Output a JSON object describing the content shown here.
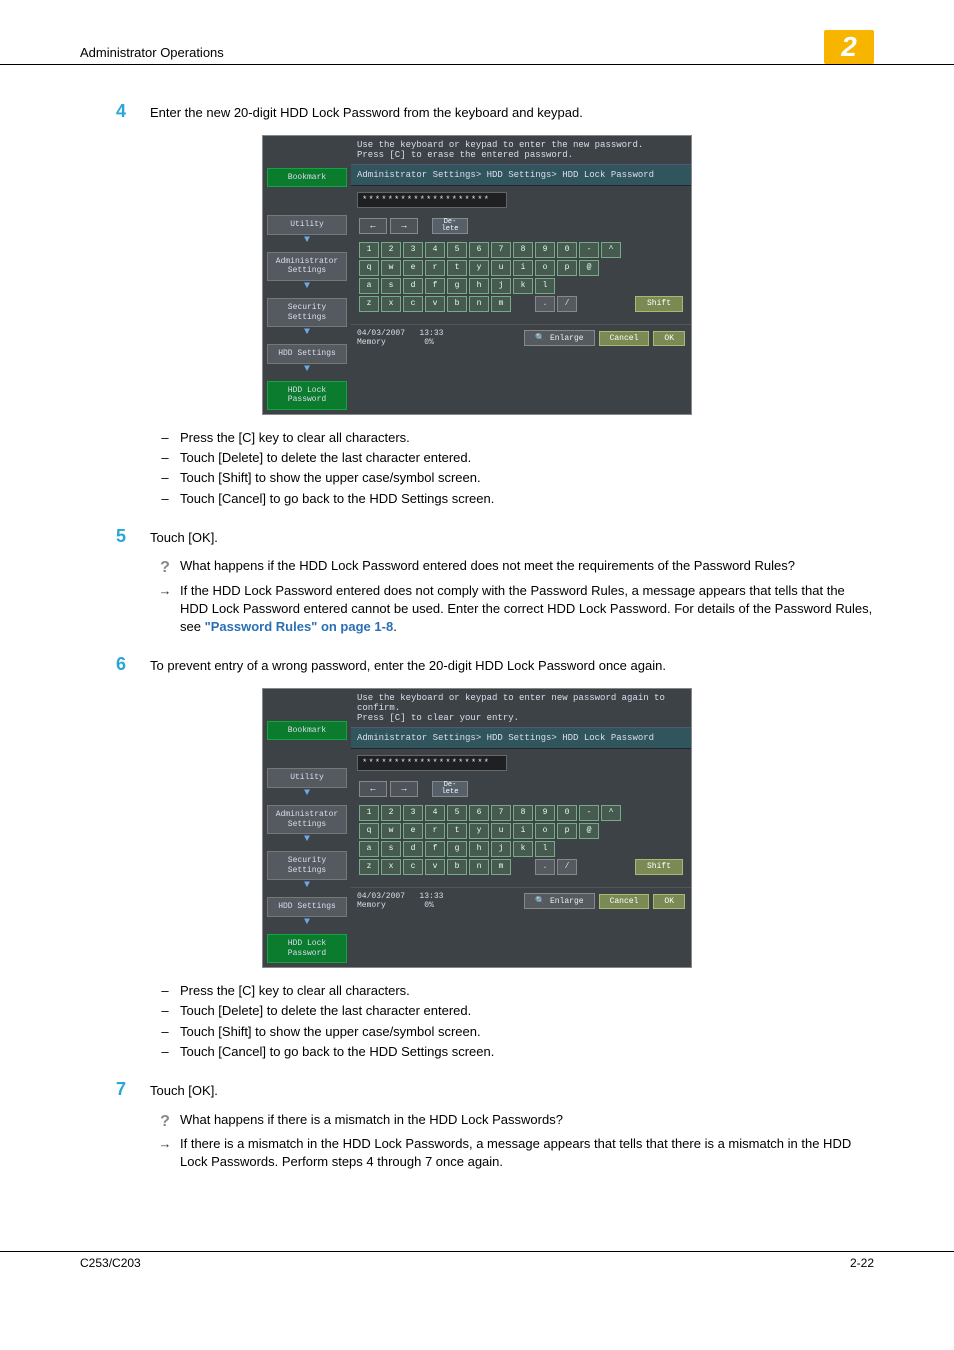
{
  "header": {
    "title": "Administrator Operations",
    "chapter": "2"
  },
  "step4": {
    "num": "4",
    "text": "Enter the new 20-digit HDD Lock Password from the keyboard and keypad.",
    "bullets": [
      "Press the [C] key to clear all characters.",
      "Touch [Delete] to delete the last character entered.",
      "Touch [Shift] to show the upper case/symbol screen.",
      "Touch [Cancel] to go back to the HDD Settings screen."
    ]
  },
  "step5": {
    "num": "5",
    "text": "Touch [OK].",
    "q": "What happens if the HDD Lock Password entered does not meet the requirements of the Password Rules?",
    "a_pre": "If the HDD Lock Password entered does not comply with the Password Rules, a message appears that tells that the HDD Lock Password entered cannot be used. Enter the correct HDD Lock Password. For details of the Password Rules, see ",
    "a_link": "\"Password Rules\" on page 1-8",
    "a_post": "."
  },
  "step6": {
    "num": "6",
    "text": "To prevent entry of a wrong password, enter the 20-digit HDD Lock Password once again.",
    "bullets": [
      "Press the [C] key to clear all characters.",
      "Touch [Delete] to delete the last character entered.",
      "Touch [Shift] to show the upper case/symbol screen.",
      "Touch [Cancel] to go back to the HDD Settings screen."
    ]
  },
  "step7": {
    "num": "7",
    "text": "Touch [OK].",
    "q": "What happens if there is a mismatch in the HDD Lock Passwords?",
    "a": "If there is a mismatch in the HDD Lock Passwords, a message appears that tells that there is a mismatch in the HDD Lock Passwords. Perform steps 4 through 7 once again."
  },
  "shot1": {
    "instr1": "Use the keyboard or keypad to enter the new password.",
    "instr2": "Press [C] to erase the entered password.",
    "breadcrumb": "Administrator Settings> HDD Settings> HDD Lock Password",
    "masked": "********************",
    "side": {
      "bookmark": "Bookmark",
      "utility": "Utility",
      "admin": "Administrator Settings",
      "security": "Security Settings",
      "hdd": "HDD Settings",
      "lock": "HDD Lock Password"
    },
    "kb": {
      "nav_left": "←",
      "nav_right": "→",
      "del": "De-\nlete",
      "row1": [
        "1",
        "2",
        "3",
        "4",
        "5",
        "6",
        "7",
        "8",
        "9",
        "0",
        "-",
        "^"
      ],
      "row2": [
        "q",
        "w",
        "e",
        "r",
        "t",
        "y",
        "u",
        "i",
        "o",
        "p",
        "@"
      ],
      "row3": [
        "a",
        "s",
        "d",
        "f",
        "g",
        "h",
        "j",
        "k",
        "l"
      ],
      "row4": [
        "z",
        "x",
        "c",
        "v",
        "b",
        "n",
        "m"
      ],
      "row4b": [
        ".",
        "/"
      ],
      "shift": "Shift"
    },
    "footer": {
      "date": "04/03/2007",
      "time": "13:33",
      "mem": "Memory",
      "pct": "0%",
      "enlarge": "Enlarge",
      "cancel": "Cancel",
      "ok": "OK"
    }
  },
  "shot2": {
    "instr1": "Use the keyboard or keypad to enter new password again to confirm.",
    "instr2": "Press [C] to clear your entry."
  },
  "footer": {
    "model": "C253/C203",
    "page": "2-22"
  }
}
